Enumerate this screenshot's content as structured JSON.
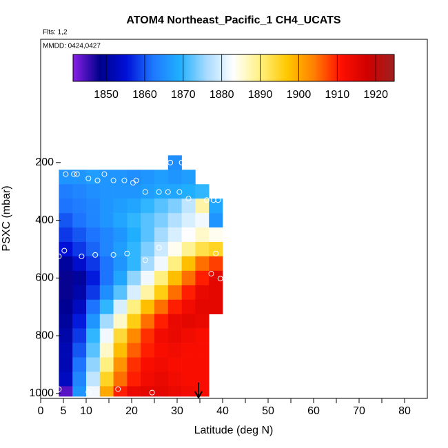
{
  "chart_data": {
    "type": "heatmap",
    "title": "ATOM4 Northeast_Pacific_1 CH4_UCATS",
    "annotations": [
      "Flts: 1,2",
      "MMDD: 0424,0427"
    ],
    "xlabel": "Latitude (deg N)",
    "ylabel": "PSXC (mbar)",
    "xlim": [
      0,
      85
    ],
    "ylim": [
      1017,
      -227
    ],
    "xticks": [
      0,
      5,
      10,
      20,
      30,
      40,
      50,
      60,
      70,
      80
    ],
    "xminor": [
      15,
      25,
      35,
      45,
      55,
      65,
      75
    ],
    "yticks": [
      200,
      400,
      600,
      800,
      1000
    ],
    "lat_edges": [
      4,
      7,
      10,
      13,
      16,
      19,
      22,
      25,
      28,
      31,
      34,
      37,
      40
    ],
    "p_edges": [
      175,
      225,
      275,
      325,
      375,
      425,
      475,
      525,
      575,
      625,
      675,
      725,
      775,
      825,
      875,
      925,
      975,
      1010
    ],
    "values": [
      [
        null,
        null,
        null,
        null,
        null,
        null,
        null,
        null,
        1865,
        null,
        null,
        null
      ],
      [
        1866,
        1866,
        1867,
        1866,
        1866,
        1865,
        1866,
        1867,
        1866,
        1867,
        null,
        null
      ],
      [
        1863,
        1864,
        1865,
        1866,
        1866,
        1866,
        1867,
        1868,
        1868,
        1869,
        1870,
        null
      ],
      [
        1862,
        1863,
        1864,
        1866,
        1867,
        1868,
        1870,
        1872,
        1874,
        1878,
        1888,
        1868
      ],
      [
        1860,
        1862,
        1864,
        1866,
        1868,
        1870,
        1872,
        1874,
        1877,
        1880,
        1882,
        1866
      ],
      [
        1858,
        1860,
        1862,
        1864,
        1866,
        1869,
        1872,
        1876,
        1880,
        1883,
        1886,
        1884
      ],
      [
        1855,
        1858,
        1861,
        1864,
        1867,
        1870,
        1874,
        1879,
        1884,
        1889,
        1893,
        1895
      ],
      [
        1850,
        1854,
        1858,
        1862,
        1866,
        1870,
        1876,
        1882,
        1890,
        1898,
        1905,
        1908
      ],
      [
        1848,
        1850,
        1856,
        1862,
        1868,
        1875,
        1882,
        1890,
        1898,
        1905,
        1910,
        1915
      ],
      [
        1848,
        1851,
        1858,
        1865,
        1872,
        1880,
        1888,
        1896,
        1905,
        1910,
        1914,
        1915
      ],
      [
        1849,
        1853,
        1862,
        1870,
        1880,
        1890,
        1898,
        1905,
        1910,
        1913,
        1915,
        1915
      ],
      [
        1850,
        1856,
        1866,
        1876,
        1886,
        1896,
        1905,
        1910,
        1914,
        1915,
        1914,
        null
      ],
      [
        1851,
        1858,
        1870,
        1882,
        1894,
        1903,
        1909,
        1913,
        1914,
        1913,
        1912,
        null
      ],
      [
        1852,
        1860,
        1872,
        1886,
        1898,
        1906,
        1910,
        1912,
        1913,
        1912,
        1912,
        null
      ],
      [
        1852,
        1862,
        1875,
        1890,
        1902,
        1909,
        1912,
        1913,
        1912,
        1912,
        1912,
        null
      ],
      [
        1853,
        1864,
        1878,
        1895,
        1905,
        1910,
        1913,
        1914,
        1913,
        1912,
        1912,
        null
      ],
      [
        1844,
        1866,
        1882,
        1900,
        1910,
        1914,
        1915,
        1915,
        1914,
        1913,
        1912,
        null
      ]
    ],
    "colorbar": {
      "lim": [
        1841.4,
        1924.8
      ],
      "ticks": [
        1850,
        1860,
        1870,
        1880,
        1890,
        1900,
        1910,
        1920
      ],
      "colors": [
        "#8a1ee6",
        "#00008b",
        "#0010d8",
        "#1e78ff",
        "#20b0ff",
        "#a8dcff",
        "#ffffff",
        "#fff080",
        "#ffc800",
        "#ff8000",
        "#ff1000",
        "#d00000",
        "#a02020"
      ]
    },
    "samples": {
      "x": [
        5.5,
        7.3,
        8,
        10.5,
        14,
        12.5,
        16,
        18.4,
        20.3,
        21,
        23,
        26,
        28,
        30.5,
        32.5,
        36.5,
        38,
        39,
        28.5,
        31,
        4,
        5.2,
        9,
        12,
        16,
        19,
        23,
        26,
        38.5,
        37.5,
        39.5,
        4,
        10.5,
        17,
        24.5,
        37.7
      ],
      "y": [
        240,
        240,
        240,
        255,
        240,
        262,
        262,
        262,
        270,
        262,
        302,
        302,
        302,
        302,
        325,
        330,
        330,
        330,
        200,
        200,
        525,
        505,
        525,
        520,
        520,
        515,
        538,
        495,
        515,
        585,
        602,
        985,
        995,
        985,
        997,
        975
      ]
    }
  }
}
